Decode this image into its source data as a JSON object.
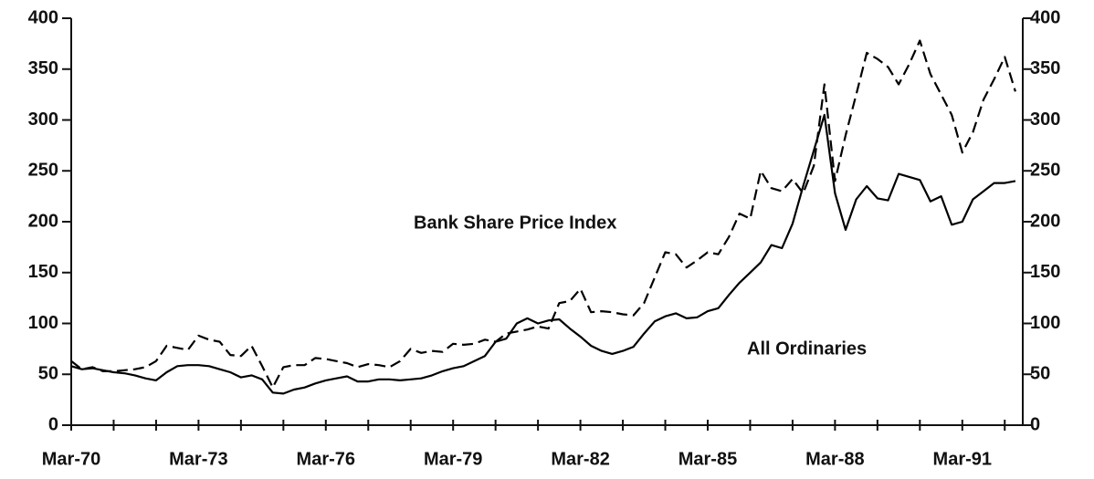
{
  "chart_data": {
    "type": "line",
    "categories": [
      "Mar-70",
      null,
      null,
      null,
      null,
      null,
      null,
      null,
      null,
      null,
      null,
      null,
      "Mar-73",
      null,
      null,
      null,
      null,
      null,
      null,
      null,
      null,
      null,
      null,
      null,
      "Mar-76",
      null,
      null,
      null,
      null,
      null,
      null,
      null,
      null,
      null,
      null,
      null,
      "Mar-79",
      null,
      null,
      null,
      null,
      null,
      null,
      null,
      null,
      null,
      null,
      null,
      "Mar-82",
      null,
      null,
      null,
      null,
      null,
      null,
      null,
      null,
      null,
      null,
      null,
      "Mar-85",
      null,
      null,
      null,
      null,
      null,
      null,
      null,
      null,
      null,
      null,
      null,
      "Mar-88",
      null,
      null,
      null,
      null,
      null,
      null,
      null,
      null,
      null,
      null,
      null,
      "Mar-91",
      null,
      null,
      null,
      null,
      null
    ],
    "series": [
      {
        "name": "Bank Share Price Index",
        "color": "#000000",
        "line_style": "dashed",
        "values": [
          63,
          55,
          57,
          53,
          53,
          54,
          55,
          57,
          63,
          78,
          76,
          74,
          88,
          84,
          82,
          69,
          68,
          78,
          58,
          37,
          57,
          59,
          59,
          66,
          65,
          63,
          61,
          57,
          60,
          59,
          57,
          63,
          75,
          71,
          73,
          72,
          80,
          79,
          80,
          84,
          82,
          90,
          92,
          94,
          97,
          95,
          120,
          122,
          134,
          111,
          112,
          111,
          109,
          108,
          120,
          145,
          170,
          168,
          155,
          162,
          170,
          168,
          185,
          208,
          203,
          250,
          233,
          230,
          242,
          228,
          255,
          335,
          240,
          285,
          325,
          366,
          360,
          352,
          335,
          355,
          378,
          345,
          325,
          305,
          268,
          288,
          320,
          340,
          362,
          328
        ]
      },
      {
        "name": "All Ordinaries",
        "color": "#000000",
        "line_style": "solid",
        "values": [
          58,
          55,
          56,
          54,
          52,
          51,
          49,
          46,
          44,
          52,
          58,
          59,
          59,
          58,
          55,
          52,
          47,
          49,
          45,
          32,
          31,
          35,
          37,
          41,
          44,
          46,
          48,
          43,
          43,
          45,
          45,
          44,
          45,
          46,
          49,
          53,
          56,
          58,
          63,
          68,
          82,
          85,
          100,
          105,
          100,
          103,
          104,
          95,
          87,
          78,
          73,
          70,
          73,
          77,
          90,
          102,
          107,
          110,
          105,
          106,
          112,
          115,
          128,
          140,
          150,
          160,
          177,
          174,
          198,
          235,
          270,
          305,
          228,
          192,
          222,
          235,
          223,
          221,
          247,
          244,
          241,
          220,
          225,
          197,
          200,
          222,
          230,
          238,
          238,
          240
        ]
      }
    ],
    "ylim": [
      0,
      400
    ],
    "yticks": [
      0,
      50,
      100,
      150,
      200,
      250,
      300,
      350,
      400
    ],
    "y2lim": [
      0,
      400
    ],
    "y2ticks": [
      0,
      50,
      100,
      150,
      200,
      250,
      300,
      350,
      400
    ],
    "grid": false
  }
}
